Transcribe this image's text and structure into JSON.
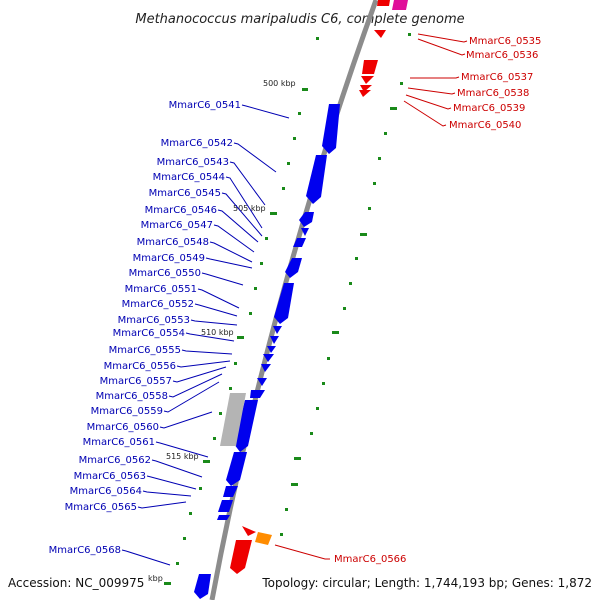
{
  "title": "Methanococcus maripaludis C6, complete genome",
  "footer": {
    "accession": "Accession: NC_009975",
    "topology": "Topology: circular; Length: 1,744,193 bp; Genes: 1,872"
  },
  "kbp_labels": [
    "500 kbp",
    "505 kbp",
    "510 kbp",
    "515 kbp",
    "kbp"
  ],
  "left_genes": [
    "MmarC6_0541",
    "MmarC6_0542",
    "MmarC6_0543",
    "MmarC6_0544",
    "MmarC6_0545",
    "MmarC6_0546",
    "MmarC6_0547",
    "MmarC6_0548",
    "MmarC6_0549",
    "MmarC6_0550",
    "MmarC6_0551",
    "MmarC6_0552",
    "MmarC6_0553",
    "MmarC6_0554",
    "MmarC6_0555",
    "MmarC6_0556",
    "MmarC6_0557",
    "MmarC6_0558",
    "MmarC6_0559",
    "MmarC6_0560",
    "MmarC6_0561",
    "MmarC6_0562",
    "MmarC6_0563",
    "MmarC6_0564",
    "MmarC6_0565",
    "MmarC6_0568"
  ],
  "right_genes": [
    "MmarC6_0535",
    "MmarC6_0536",
    "MmarC6_0537",
    "MmarC6_0538",
    "MmarC6_0539",
    "MmarC6_0540",
    "MmarC6_0566"
  ],
  "colors": {
    "forward_gene": "#0000ee",
    "reverse_gene": "#ee0000",
    "pink_gene": "#e0109a",
    "orange_gene": "#ff8c00",
    "rna_gene": "#b4b4b4",
    "backbone": "#8c8c8c",
    "tick": "#1a8a1a",
    "left_label": "#0000b3",
    "right_label": "#cc0000"
  }
}
